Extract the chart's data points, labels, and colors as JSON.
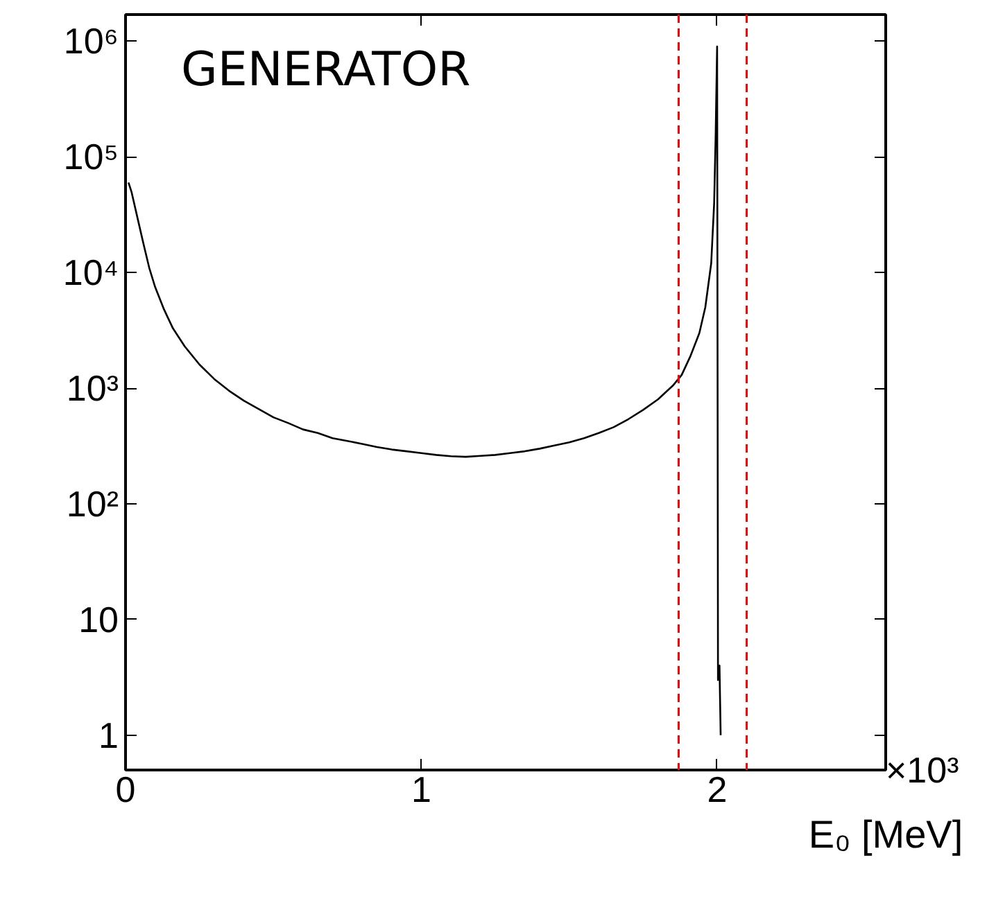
{
  "chart_data": {
    "type": "line",
    "xlabel": "E₀ [MeV]",
    "annotations": [
      "GENERATOR",
      "×10³"
    ],
    "xlim": [
      0,
      2.57
    ],
    "ylim": [
      0.5,
      1700000
    ],
    "log": "y",
    "grid": false,
    "marker": "none",
    "line_style": "solid",
    "xticks": [
      0,
      1,
      2
    ],
    "yticks": [
      {
        "value": 1,
        "label": "1"
      },
      {
        "value": 10,
        "label": "10"
      },
      {
        "value": 100,
        "label": "10²"
      },
      {
        "value": 1000,
        "label": "10³"
      },
      {
        "value": 10000,
        "label": "10⁴"
      },
      {
        "value": 100000,
        "label": "10⁵"
      },
      {
        "value": 1000000,
        "label": "10⁶"
      }
    ],
    "ref_lines": [
      {
        "axis": "x",
        "value": 1.87,
        "color": "#ff0000",
        "line_style": "dashed"
      },
      {
        "axis": "x",
        "value": 2.1,
        "color": "#ff0000",
        "line_style": "dashed"
      }
    ],
    "series": [
      {
        "color": "#000000",
        "x": [
          0.01,
          0.02,
          0.04,
          0.06,
          0.08,
          0.1,
          0.13,
          0.16,
          0.2,
          0.25,
          0.3,
          0.35,
          0.4,
          0.45,
          0.5,
          0.55,
          0.6,
          0.65,
          0.7,
          0.75,
          0.8,
          0.85,
          0.9,
          0.95,
          1.0,
          1.05,
          1.1,
          1.15,
          1.2,
          1.25,
          1.3,
          1.35,
          1.4,
          1.45,
          1.5,
          1.55,
          1.6,
          1.65,
          1.7,
          1.75,
          1.8,
          1.85,
          1.88,
          1.91,
          1.94,
          1.96,
          1.98,
          1.99,
          1.995,
          2.0,
          2.003,
          2.008,
          2.012
        ],
        "values": [
          60000,
          50000,
          30000,
          18000,
          11000,
          7500,
          4800,
          3300,
          2300,
          1600,
          1200,
          950,
          780,
          660,
          560,
          500,
          440,
          410,
          370,
          350,
          330,
          310,
          295,
          285,
          275,
          265,
          258,
          255,
          260,
          265,
          275,
          285,
          300,
          320,
          340,
          370,
          410,
          460,
          540,
          650,
          800,
          1050,
          1300,
          1900,
          3000,
          5000,
          12000,
          40000,
          150000,
          900000,
          3,
          4,
          1
        ]
      }
    ]
  }
}
